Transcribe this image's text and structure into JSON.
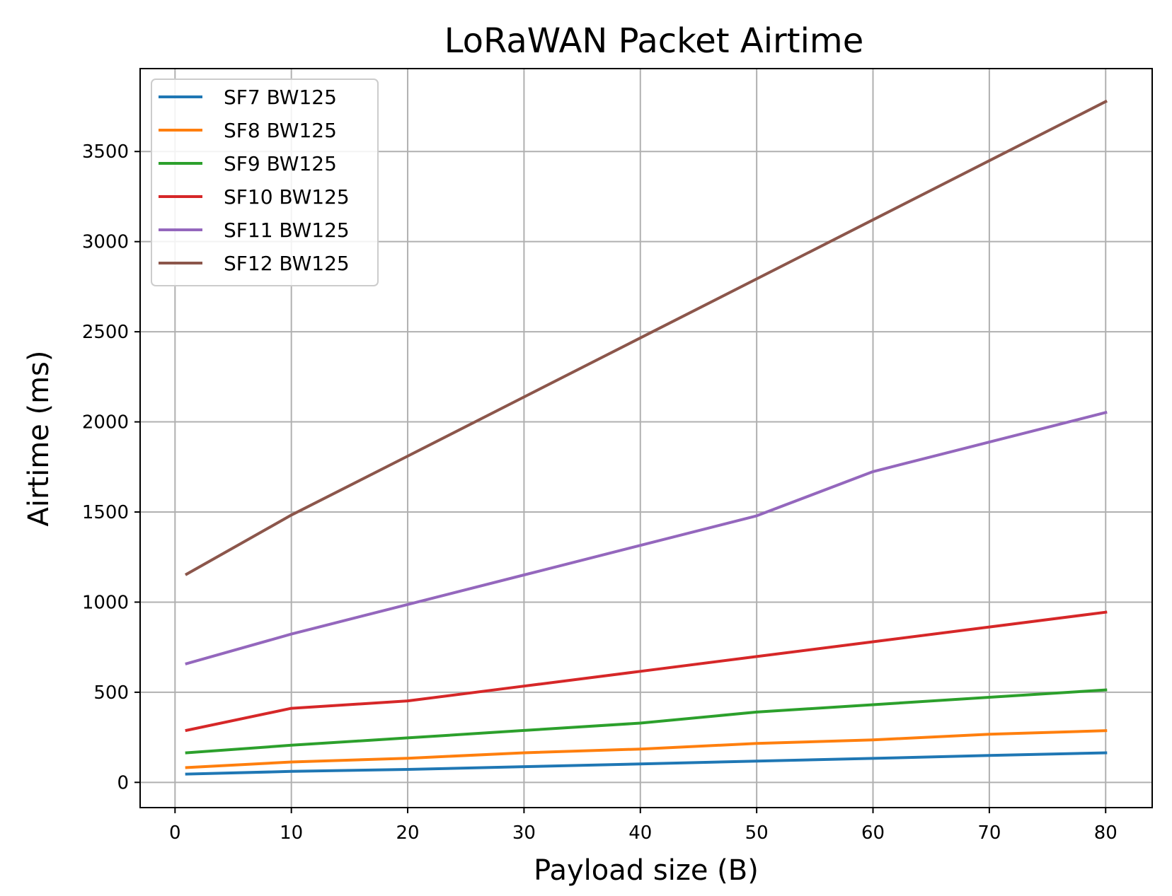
{
  "chart_data": {
    "type": "line",
    "title": "LoRaWAN Packet Airtime",
    "xlabel": "Payload size (B)",
    "ylabel": "Airtime (ms)",
    "x": [
      1,
      10,
      20,
      30,
      40,
      50,
      60,
      70,
      80
    ],
    "xlim": [
      -3,
      84
    ],
    "ylim": [
      -140,
      3960
    ],
    "xticks": [
      0,
      10,
      20,
      30,
      40,
      50,
      60,
      70,
      80
    ],
    "yticks": [
      0,
      500,
      1000,
      1500,
      2000,
      2500,
      3000,
      3500
    ],
    "xtick_labels": [
      "0",
      "10",
      "20",
      "30",
      "40",
      "50",
      "60",
      "70",
      "80"
    ],
    "ytick_labels": [
      "0",
      "500",
      "1000",
      "1500",
      "2000",
      "2500",
      "3000",
      "3500"
    ],
    "grid": true,
    "legend_position": "top-left",
    "series": [
      {
        "name": "SF7 BW125",
        "color": "#1f77b4",
        "values": [
          46,
          61,
          72,
          87,
          102,
          118,
          133,
          149,
          164
        ]
      },
      {
        "name": "SF8 BW125",
        "color": "#ff7f0e",
        "values": [
          82,
          113,
          134,
          164,
          185,
          216,
          236,
          267,
          287
        ]
      },
      {
        "name": "SF9 BW125",
        "color": "#2ca02c",
        "values": [
          164,
          206,
          247,
          288,
          329,
          390,
          431,
          472,
          513
        ]
      },
      {
        "name": "SF10 BW125",
        "color": "#d62728",
        "values": [
          289,
          411,
          452,
          534,
          616,
          698,
          780,
          862,
          944
        ]
      },
      {
        "name": "SF11 BW125",
        "color": "#9467bd",
        "values": [
          659,
          823,
          987,
          1151,
          1315,
          1479,
          1724,
          1888,
          2052
        ]
      },
      {
        "name": "SF12 BW125",
        "color": "#8c564b",
        "values": [
          1155,
          1483,
          1810,
          2138,
          2466,
          2793,
          3121,
          3449,
          3777
        ]
      }
    ]
  }
}
